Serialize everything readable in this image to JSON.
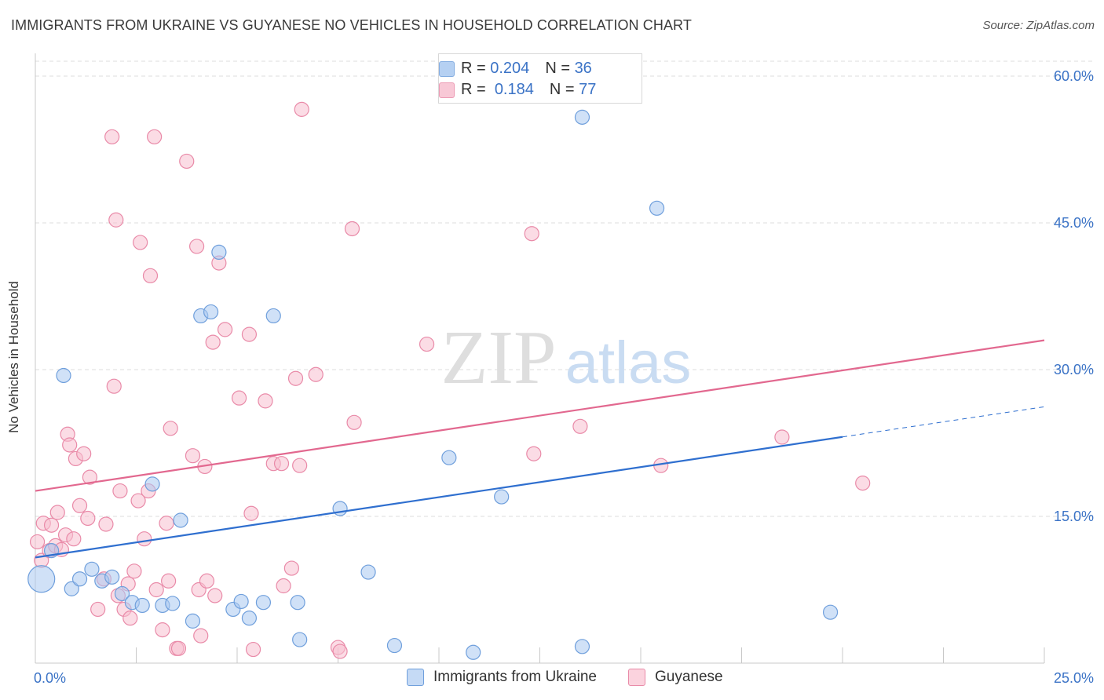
{
  "header": {
    "title": "IMMIGRANTS FROM UKRAINE VS GUYANESE NO VEHICLES IN HOUSEHOLD CORRELATION CHART",
    "source": "Source: ZipAtlas.com"
  },
  "watermark": {
    "zip": "ZIP",
    "atlas": "atlas"
  },
  "legend_top": {
    "rows": [
      {
        "r_label": "R =",
        "r_value": "0.204",
        "n_label": "N =",
        "n_value": "36",
        "color": "#a9c8f0",
        "border": "#6f9fdc"
      },
      {
        "r_label": "R =",
        "r_value": "0.184",
        "n_label": "N =",
        "n_value": "77",
        "color": "#f7bfd0",
        "border": "#e98aa8"
      }
    ]
  },
  "bottom_legend": {
    "items": [
      {
        "label": "Immigrants from Ukraine",
        "color": "#c5daf5",
        "border": "#6f9fdc"
      },
      {
        "label": "Guyanese",
        "color": "#fbd3de",
        "border": "#e98aa8"
      }
    ]
  },
  "colors": {
    "ukraine_fill": "#a9c8f0",
    "ukraine_stroke": "#6f9fdc",
    "ukraine_line": "#2f6fcf",
    "guyanese_fill": "#f7bfd0",
    "guyanese_stroke": "#e98aa8",
    "guyanese_line": "#e2688f",
    "axis_text": "#3b73c6",
    "grid": "#dcdcdc"
  },
  "chart_data": {
    "type": "scatter",
    "title": "IMMIGRANTS FROM UKRAINE VS GUYANESE NO VEHICLES IN HOUSEHOLD CORRELATION CHART",
    "xlabel": "",
    "ylabel": "No Vehicles in Household",
    "xlim": [
      0,
      25
    ],
    "ylim": [
      0,
      60
    ],
    "x_tick_labels": [
      "0.0%",
      "25.0%"
    ],
    "y_ticks": [
      15,
      30,
      45,
      60
    ],
    "y_tick_labels": [
      "15.0%",
      "30.0%",
      "45.0%",
      "60.0%"
    ],
    "grid": true,
    "legend_position": "top-center",
    "series": [
      {
        "name": "Immigrants from Ukraine",
        "r": 0.204,
        "n": 36,
        "trend": {
          "x0": 0,
          "y0": 10.8,
          "x1": 25,
          "y1": 26.2,
          "solid_until_x": 20
        },
        "points": [
          [
            0.15,
            8.6,
            "large"
          ],
          [
            0.4,
            11.5
          ],
          [
            0.7,
            29.4
          ],
          [
            0.9,
            7.6
          ],
          [
            1.1,
            8.6
          ],
          [
            1.4,
            9.6
          ],
          [
            1.65,
            8.4
          ],
          [
            1.9,
            8.8
          ],
          [
            2.15,
            7.1
          ],
          [
            2.4,
            6.2
          ],
          [
            2.65,
            5.9
          ],
          [
            2.9,
            18.3
          ],
          [
            3.15,
            5.9
          ],
          [
            3.4,
            6.1
          ],
          [
            3.6,
            14.6
          ],
          [
            3.9,
            4.3
          ],
          [
            4.1,
            35.5
          ],
          [
            4.35,
            35.9
          ],
          [
            4.55,
            42.0
          ],
          [
            4.9,
            5.5
          ],
          [
            5.1,
            6.3
          ],
          [
            5.3,
            4.6
          ],
          [
            5.65,
            6.2
          ],
          [
            5.9,
            35.5
          ],
          [
            6.5,
            6.2
          ],
          [
            6.55,
            2.4
          ],
          [
            7.55,
            15.8
          ],
          [
            8.25,
            9.3
          ],
          [
            8.9,
            1.8
          ],
          [
            10.25,
            21.0
          ],
          [
            10.85,
            1.1
          ],
          [
            11.55,
            17.0
          ],
          [
            13.55,
            1.7
          ],
          [
            13.55,
            55.8
          ],
          [
            15.4,
            46.5
          ],
          [
            19.7,
            5.2
          ]
        ]
      },
      {
        "name": "Guyanese",
        "r": 0.184,
        "n": 77,
        "trend": {
          "x0": 0,
          "y0": 17.6,
          "x1": 25,
          "y1": 33.0
        },
        "points": [
          [
            0.05,
            12.4
          ],
          [
            0.15,
            10.5
          ],
          [
            0.2,
            14.3
          ],
          [
            0.35,
            11.5
          ],
          [
            0.4,
            14.1
          ],
          [
            0.5,
            12.0
          ],
          [
            0.55,
            15.4
          ],
          [
            0.65,
            11.6
          ],
          [
            0.75,
            13.1
          ],
          [
            0.8,
            23.4
          ],
          [
            0.85,
            22.3
          ],
          [
            0.95,
            12.7
          ],
          [
            1.0,
            20.9
          ],
          [
            1.1,
            16.1
          ],
          [
            1.2,
            21.4
          ],
          [
            1.3,
            14.8
          ],
          [
            1.35,
            19.0
          ],
          [
            1.55,
            5.5
          ],
          [
            1.7,
            8.6
          ],
          [
            1.75,
            14.2
          ],
          [
            1.9,
            53.8
          ],
          [
            1.95,
            28.3
          ],
          [
            2.0,
            45.3
          ],
          [
            2.05,
            6.9
          ],
          [
            2.1,
            17.6
          ],
          [
            2.2,
            5.5
          ],
          [
            2.3,
            8.1
          ],
          [
            2.35,
            4.6
          ],
          [
            2.45,
            9.4
          ],
          [
            2.55,
            16.6
          ],
          [
            2.6,
            43.0
          ],
          [
            2.7,
            12.7
          ],
          [
            2.8,
            17.6
          ],
          [
            2.85,
            39.6
          ],
          [
            2.95,
            53.8
          ],
          [
            3.0,
            7.5
          ],
          [
            3.15,
            3.4
          ],
          [
            3.25,
            14.3
          ],
          [
            3.3,
            8.4
          ],
          [
            3.35,
            24.0
          ],
          [
            3.5,
            1.5
          ],
          [
            3.55,
            1.5
          ],
          [
            3.75,
            51.3
          ],
          [
            3.9,
            21.2
          ],
          [
            4.0,
            42.6
          ],
          [
            4.05,
            7.5
          ],
          [
            4.1,
            2.8
          ],
          [
            4.2,
            20.1
          ],
          [
            4.25,
            8.4
          ],
          [
            4.4,
            32.8
          ],
          [
            4.45,
            6.9
          ],
          [
            4.55,
            40.9
          ],
          [
            4.7,
            34.1
          ],
          [
            5.05,
            27.1
          ],
          [
            5.3,
            33.6
          ],
          [
            5.35,
            15.3
          ],
          [
            5.4,
            1.4
          ],
          [
            5.7,
            26.8
          ],
          [
            5.9,
            20.4
          ],
          [
            6.1,
            20.4
          ],
          [
            6.15,
            7.9
          ],
          [
            6.35,
            9.7
          ],
          [
            6.45,
            29.1
          ],
          [
            6.55,
            20.2
          ],
          [
            6.6,
            56.6
          ],
          [
            6.95,
            29.5
          ],
          [
            7.5,
            1.6
          ],
          [
            7.85,
            44.4
          ],
          [
            7.9,
            24.6
          ],
          [
            9.7,
            32.6
          ],
          [
            12.3,
            43.9
          ],
          [
            12.35,
            21.4
          ],
          [
            13.5,
            24.2
          ],
          [
            15.5,
            20.2
          ],
          [
            18.5,
            23.1
          ],
          [
            20.5,
            18.4
          ],
          [
            7.55,
            1.2
          ]
        ]
      }
    ]
  }
}
